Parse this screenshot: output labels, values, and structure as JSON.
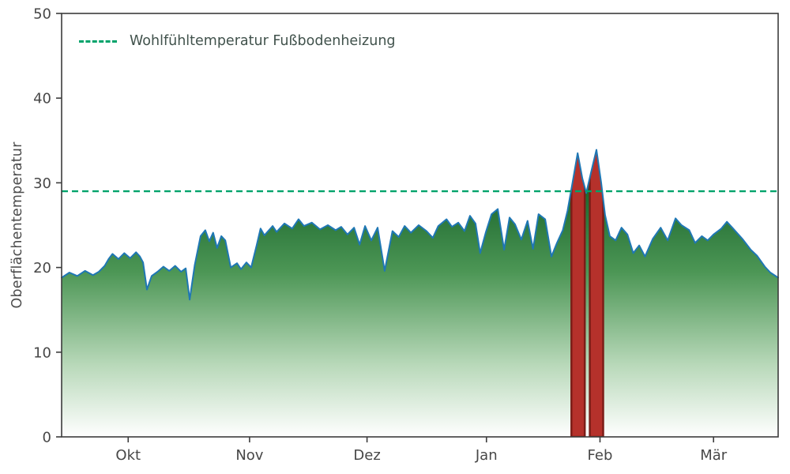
{
  "figure": {
    "background": "#ffffff"
  },
  "chart_data": {
    "type": "area",
    "title": "",
    "xlabel": "",
    "ylabel": "Oberflächentemperatur",
    "ylim": [
      0,
      50
    ],
    "xlim": [
      0,
      183
    ],
    "grid": false,
    "y_ticks": [
      0,
      10,
      20,
      30,
      40,
      50
    ],
    "x_ticks": [
      {
        "pos": 17,
        "label": "Okt"
      },
      {
        "pos": 48,
        "label": "Nov"
      },
      {
        "pos": 78,
        "label": "Dez"
      },
      {
        "pos": 108.5,
        "label": "Jan"
      },
      {
        "pos": 137.5,
        "label": "Feb"
      },
      {
        "pos": 166.5,
        "label": "Mär"
      }
    ],
    "legend": {
      "position": "upper-left",
      "entries": [
        {
          "label": "Wohlfühltemperatur Fußbodenheizung",
          "style": "dashed",
          "color": "#00a36b"
        }
      ]
    },
    "threshold": {
      "value": 29,
      "label": "Wohlfühltemperatur Fußbodenheizung",
      "color": "#00a36b",
      "style": "dashed"
    },
    "highlight_spans": [
      {
        "start": 130.2,
        "end": 133.6
      },
      {
        "start": 134.9,
        "end": 138.3
      }
    ],
    "series": [
      {
        "name": "Oberflächentemperatur",
        "color": "#1f77b4",
        "points": [
          [
            0,
            18.8
          ],
          [
            2,
            19.4
          ],
          [
            4,
            19.0
          ],
          [
            6,
            19.6
          ],
          [
            8,
            19.1
          ],
          [
            9.5,
            19.5
          ],
          [
            11,
            20.2
          ],
          [
            12,
            21.0
          ],
          [
            13,
            21.6
          ],
          [
            14.5,
            21.0
          ],
          [
            16,
            21.7
          ],
          [
            17.5,
            21.1
          ],
          [
            19,
            21.8
          ],
          [
            20,
            21.3
          ],
          [
            20.8,
            20.6
          ],
          [
            21.8,
            17.4
          ],
          [
            23,
            19.0
          ],
          [
            24.5,
            19.5
          ],
          [
            26,
            20.1
          ],
          [
            27.5,
            19.6
          ],
          [
            29,
            20.2
          ],
          [
            30.5,
            19.5
          ],
          [
            31.7,
            19.9
          ],
          [
            32.7,
            16.2
          ],
          [
            34,
            20.3
          ],
          [
            35.5,
            23.7
          ],
          [
            36.7,
            24.4
          ],
          [
            37.7,
            23.1
          ],
          [
            38.7,
            24.1
          ],
          [
            39.7,
            22.3
          ],
          [
            40.8,
            23.7
          ],
          [
            41.8,
            23.2
          ],
          [
            43.2,
            20.0
          ],
          [
            44.8,
            20.5
          ],
          [
            45.8,
            19.8
          ],
          [
            47.2,
            20.6
          ],
          [
            48.4,
            20.0
          ],
          [
            49.8,
            22.6
          ],
          [
            50.8,
            24.6
          ],
          [
            51.8,
            23.8
          ],
          [
            53.9,
            24.9
          ],
          [
            54.9,
            24.2
          ],
          [
            56.9,
            25.2
          ],
          [
            58.9,
            24.6
          ],
          [
            60.5,
            25.7
          ],
          [
            61.9,
            24.9
          ],
          [
            63.9,
            25.3
          ],
          [
            66,
            24.5
          ],
          [
            68,
            25.0
          ],
          [
            70,
            24.4
          ],
          [
            71.4,
            24.8
          ],
          [
            73,
            23.9
          ],
          [
            74.7,
            24.7
          ],
          [
            76.1,
            22.7
          ],
          [
            77.5,
            24.9
          ],
          [
            79.1,
            23.2
          ],
          [
            80.7,
            24.7
          ],
          [
            82.5,
            19.6
          ],
          [
            84.5,
            24.3
          ],
          [
            86.1,
            23.6
          ],
          [
            87.6,
            24.9
          ],
          [
            89.2,
            24.1
          ],
          [
            91.2,
            25.0
          ],
          [
            93.2,
            24.3
          ],
          [
            94.8,
            23.5
          ],
          [
            96.2,
            24.9
          ],
          [
            98.3,
            25.7
          ],
          [
            99.7,
            24.8
          ],
          [
            101.3,
            25.3
          ],
          [
            102.9,
            24.3
          ],
          [
            104.3,
            26.1
          ],
          [
            105.7,
            25.2
          ],
          [
            106.9,
            21.7
          ],
          [
            108.3,
            24.1
          ],
          [
            109.8,
            26.3
          ],
          [
            111.4,
            26.9
          ],
          [
            113,
            22.1
          ],
          [
            114.4,
            25.9
          ],
          [
            115.8,
            25.1
          ],
          [
            117.4,
            23.3
          ],
          [
            119,
            25.5
          ],
          [
            120.4,
            22.2
          ],
          [
            121.8,
            26.3
          ],
          [
            123.5,
            25.7
          ],
          [
            125.1,
            21.3
          ],
          [
            126.5,
            22.9
          ],
          [
            128,
            24.4
          ],
          [
            129.2,
            26.7
          ],
          [
            130.4,
            29.8
          ],
          [
            131.8,
            33.5
          ],
          [
            133,
            30.5
          ],
          [
            134,
            28.8
          ],
          [
            135.2,
            31.2
          ],
          [
            136.6,
            33.9
          ],
          [
            137.8,
            30.0
          ],
          [
            138.8,
            26.2
          ],
          [
            140,
            23.7
          ],
          [
            141.5,
            23.2
          ],
          [
            143,
            24.7
          ],
          [
            144.5,
            23.9
          ],
          [
            146,
            21.7
          ],
          [
            147.5,
            22.6
          ],
          [
            149,
            21.3
          ],
          [
            151,
            23.4
          ],
          [
            153,
            24.7
          ],
          [
            154.8,
            23.2
          ],
          [
            156.8,
            25.8
          ],
          [
            158.3,
            25.0
          ],
          [
            160.3,
            24.4
          ],
          [
            161.8,
            22.9
          ],
          [
            163.5,
            23.7
          ],
          [
            165,
            23.2
          ],
          [
            166.5,
            23.9
          ],
          [
            168.5,
            24.6
          ],
          [
            169.9,
            25.4
          ],
          [
            171.5,
            24.6
          ],
          [
            174,
            23.3
          ],
          [
            176,
            22.1
          ],
          [
            177.6,
            21.4
          ],
          [
            179.6,
            20.1
          ],
          [
            181,
            19.4
          ],
          [
            183,
            18.8
          ]
        ]
      }
    ],
    "styles": {
      "line_color": "#1f77b4",
      "fill_gradient": [
        "#17632a",
        "#4c9655",
        "#b9d9ba",
        "#ffffff"
      ],
      "span_fill": "#b5312b",
      "span_edge": "#7c1d18",
      "frame_color": "#3c3c3c",
      "tick_label_color": "#474747",
      "axis_label_color": "#4c4c4c",
      "legend_text_color": "#41524c"
    }
  }
}
